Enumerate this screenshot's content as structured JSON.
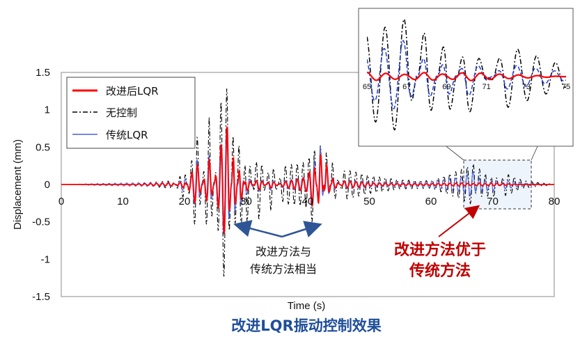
{
  "chart_data": [
    {
      "type": "line",
      "xlabel": "Time (s)",
      "ylabel": "Displacement (mm)",
      "xlim": [
        0,
        80
      ],
      "ylim": [
        -1.5,
        1.5
      ],
      "x_ticks": [
        "0",
        "10",
        "20",
        "30",
        "40",
        "50",
        "60",
        "70",
        "80"
      ],
      "y_ticks": [
        "1.5",
        "1",
        "0.5",
        "0",
        "-0.5",
        "-1",
        "-1.5"
      ],
      "legend_position": "top-left",
      "series": [
        {
          "name": "改进后LQR",
          "color": "#ff0000",
          "style": "solid",
          "x": [
            0,
            10,
            18,
            20,
            22,
            24,
            26,
            27,
            28,
            29,
            30,
            32,
            34,
            36,
            40,
            41,
            42,
            43,
            44,
            46,
            50,
            55,
            60,
            65,
            67,
            68,
            69,
            70,
            72,
            75,
            80
          ],
          "y": [
            0,
            0,
            0.02,
            -0.05,
            0.3,
            -0.35,
            0.55,
            0.8,
            -0.5,
            0.3,
            -0.1,
            0.08,
            -0.05,
            0.03,
            0.1,
            0.35,
            -0.5,
            0.3,
            -0.08,
            0.05,
            0.02,
            0.01,
            0.01,
            0.02,
            0.01,
            0.02,
            0.01,
            0.02,
            0.01,
            0,
            0
          ]
        },
        {
          "name": "无控制",
          "color": "#000000",
          "style": "dash-dot",
          "x": [
            0,
            10,
            18,
            20,
            22,
            24,
            26,
            27,
            28,
            29,
            30,
            32,
            34,
            36,
            40,
            41,
            42,
            43,
            44,
            46,
            50,
            55,
            60,
            65,
            67,
            68,
            69,
            70,
            72,
            75,
            80
          ],
          "y": [
            0,
            0,
            0.05,
            -0.2,
            0.7,
            -0.9,
            1.2,
            1.3,
            -1.0,
            0.9,
            -0.6,
            0.5,
            -0.35,
            0.25,
            0.3,
            0.6,
            -0.6,
            0.45,
            -0.3,
            0.2,
            0.12,
            0.06,
            0.05,
            0.2,
            0.28,
            -0.3,
            0.25,
            -0.2,
            0.15,
            0.05,
            0
          ]
        },
        {
          "name": "传统LQR",
          "color": "#4a5fd6",
          "style": "solid",
          "x": [
            0,
            10,
            18,
            20,
            22,
            24,
            26,
            27,
            28,
            29,
            30,
            32,
            34,
            36,
            40,
            41,
            42,
            43,
            44,
            46,
            50,
            55,
            60,
            65,
            67,
            68,
            69,
            70,
            72,
            75,
            80
          ],
          "y": [
            0,
            0.02,
            0.03,
            -0.1,
            0.35,
            -0.4,
            0.6,
            0.8,
            -0.55,
            0.35,
            -0.15,
            0.1,
            -0.08,
            0.05,
            0.1,
            0.4,
            -0.55,
            0.3,
            -0.1,
            0.06,
            0.04,
            0.03,
            0.04,
            0.1,
            0.18,
            -0.15,
            0.12,
            -0.1,
            0.06,
            0.02,
            0
          ]
        }
      ]
    },
    {
      "type": "line",
      "inset": true,
      "xlim": [
        65,
        75
      ],
      "x_ticks": [
        "65",
        "67",
        "69",
        "71",
        "73",
        "75"
      ],
      "series": [
        {
          "name": "改进后LQR",
          "color": "#ff0000",
          "style": "solid"
        },
        {
          "name": "无控制",
          "color": "#000000",
          "style": "dash-dot"
        },
        {
          "name": "传统LQR",
          "color": "#1f3fd6",
          "style": "dashed"
        }
      ]
    }
  ],
  "annotations": {
    "similar_line1": "改进方法与",
    "similar_line2": "传统方法相当",
    "better_line1": "改进方法优于",
    "better_line2": "传统方法"
  },
  "caption": "改进LQR振动控制效果",
  "colors": {
    "accent_red": "#c00000",
    "caption_blue": "#1f4e9a",
    "arrow_blue": "#2f5597"
  }
}
